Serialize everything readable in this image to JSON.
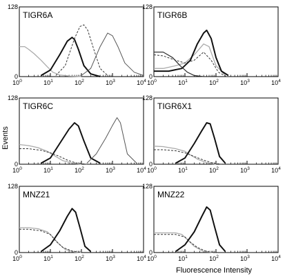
{
  "chart_data": {
    "type": "line",
    "ylabel": "Events",
    "xlabel": "Fluorescence Intensity",
    "x_scale": "log",
    "xlim": [
      1,
      10000
    ],
    "ylim": [
      0,
      128
    ],
    "x_tick_labels": [
      "10",
      "10",
      "10",
      "10",
      "10"
    ],
    "x_tick_exponents": [
      "0",
      "1",
      "2",
      "3",
      "4"
    ],
    "y_tick_labels": [
      "0",
      "128"
    ],
    "panels": [
      {
        "title": "TIGR6A",
        "series": [
          {
            "style": "gray",
            "x": [
              1,
              1.5,
              2,
              3,
              5,
              8,
              12,
              20,
              40,
              100
            ],
            "y": [
              55,
              55,
              50,
              42,
              30,
              18,
              8,
              3,
              1,
              0
            ]
          },
          {
            "style": "thick",
            "x": [
              5,
              10,
              20,
              35,
              50,
              60,
              80,
              120,
              200,
              400
            ],
            "y": [
              2,
              12,
              40,
              65,
              72,
              68,
              50,
              20,
              5,
              0
            ]
          },
          {
            "style": "dashed",
            "x": [
              15,
              30,
              60,
              90,
              120,
              160,
              250,
              400,
              700
            ],
            "y": [
              2,
              20,
              70,
              92,
              95,
              85,
              50,
              15,
              2
            ]
          },
          {
            "style": "thin",
            "x": [
              100,
              200,
              400,
              700,
              1000,
              1500,
              2500,
              5000,
              10000
            ],
            "y": [
              2,
              15,
              55,
              80,
              75,
              55,
              25,
              8,
              2
            ]
          }
        ]
      },
      {
        "title": "TIGR6B",
        "series": [
          {
            "style": "gray",
            "x": [
              1,
              2,
              5,
              10,
              20,
              40,
              60,
              100,
              200
            ],
            "y": [
              15,
              15,
              20,
              25,
              40,
              60,
              55,
              20,
              2
            ]
          },
          {
            "style": "dashed",
            "x": [
              1,
              2,
              5,
              10,
              20,
              40,
              70,
              120,
              200
            ],
            "y": [
              40,
              38,
              30,
              25,
              30,
              45,
              30,
              8,
              1
            ]
          },
          {
            "style": "thick",
            "x": [
              1,
              3,
              8,
              15,
              25,
              40,
              50,
              70,
              100,
              150,
              250
            ],
            "y": [
              10,
              10,
              15,
              30,
              60,
              80,
              85,
              70,
              35,
              10,
              2
            ]
          },
          {
            "style": "dark",
            "x": [
              1,
              2,
              4,
              7,
              12,
              20,
              40
            ],
            "y": [
              45,
              45,
              35,
              20,
              8,
              2,
              0
            ]
          }
        ]
      },
      {
        "title": "TIGR6C",
        "series": [
          {
            "style": "gray",
            "x": [
              1,
              2,
              4,
              8,
              15,
              25,
              50,
              100
            ],
            "y": [
              38,
              36,
              32,
              25,
              15,
              7,
              2,
              0
            ]
          },
          {
            "style": "dashed",
            "x": [
              1,
              2,
              5,
              10,
              20,
              35,
              70,
              150
            ],
            "y": [
              30,
              30,
              27,
              22,
              15,
              8,
              2,
              0
            ]
          },
          {
            "style": "thick",
            "x": [
              5,
              10,
              20,
              40,
              60,
              80,
              120,
              200,
              400
            ],
            "y": [
              2,
              12,
              40,
              68,
              80,
              74,
              45,
              12,
              2
            ]
          },
          {
            "style": "thin",
            "x": [
              150,
              300,
              600,
              1000,
              1400,
              1800,
              3000,
              6000
            ],
            "y": [
              2,
              20,
              50,
              75,
              90,
              80,
              20,
              2
            ]
          }
        ]
      },
      {
        "title": "TIGR6X1",
        "series": [
          {
            "style": "gray",
            "x": [
              1,
              2,
              5,
              10,
              15,
              25,
              50,
              100
            ],
            "y": [
              35,
              34,
              30,
              25,
              18,
              10,
              3,
              0
            ]
          },
          {
            "style": "dashed",
            "x": [
              1,
              2,
              5,
              10,
              20,
              40,
              80,
              150
            ],
            "y": [
              28,
              28,
              26,
              22,
              15,
              8,
              2,
              0
            ]
          },
          {
            "style": "thick",
            "x": [
              5,
              10,
              20,
              35,
              50,
              65,
              90,
              130,
              200
            ],
            "y": [
              2,
              12,
              40,
              65,
              80,
              78,
              50,
              15,
              2
            ]
          }
        ]
      },
      {
        "title": "MNZ21",
        "series": [
          {
            "style": "gray",
            "x": [
              1,
              2,
              4,
              8,
              12,
              18,
              30,
              60,
              100
            ],
            "y": [
              48,
              48,
              46,
              40,
              30,
              18,
              6,
              1,
              0
            ]
          },
          {
            "style": "dashed",
            "x": [
              1,
              2,
              5,
              10,
              15,
              25,
              50,
              100
            ],
            "y": [
              45,
              45,
              42,
              35,
              22,
              10,
              3,
              0
            ]
          },
          {
            "style": "thick",
            "x": [
              5,
              10,
              20,
              35,
              50,
              65,
              90,
              130,
              200
            ],
            "y": [
              2,
              15,
              42,
              70,
              85,
              78,
              48,
              12,
              2
            ]
          }
        ]
      },
      {
        "title": "MNZ22",
        "series": [
          {
            "style": "gray",
            "x": [
              1,
              2,
              5,
              8,
              12,
              20,
              40,
              80
            ],
            "y": [
              38,
              38,
              38,
              35,
              25,
              12,
              2,
              0
            ]
          },
          {
            "style": "dashed",
            "x": [
              1,
              2,
              5,
              10,
              15,
              25,
              50,
              100
            ],
            "y": [
              35,
              35,
              35,
              30,
              20,
              10,
              2,
              0
            ]
          },
          {
            "style": "thick",
            "x": [
              5,
              10,
              20,
              35,
              50,
              65,
              90,
              130,
              200
            ],
            "y": [
              2,
              15,
              40,
              70,
              88,
              82,
              50,
              15,
              2
            ]
          }
        ]
      }
    ]
  }
}
